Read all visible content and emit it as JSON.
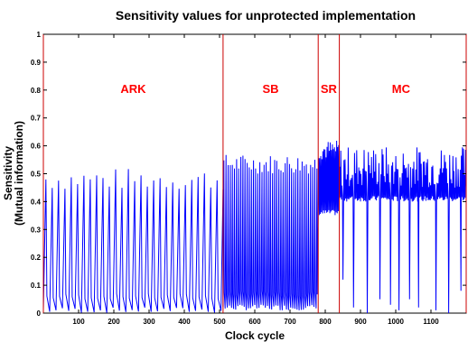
{
  "chart_data": {
    "type": "line",
    "title": "Sensitivity values for unprotected implementation",
    "xlabel": "Clock cycle",
    "ylabel_line1": "Sensitivity",
    "ylabel_line2": "(Mutual information)",
    "xlim": [
      0,
      1200
    ],
    "ylim": [
      0,
      1
    ],
    "xticks": [
      100,
      200,
      300,
      400,
      500,
      600,
      700,
      800,
      900,
      1000,
      1100
    ],
    "yticks": [
      0,
      0.1,
      0.2,
      0.3,
      0.4,
      0.5,
      0.6,
      0.7,
      0.8,
      0.9,
      1
    ],
    "grid": false,
    "line_color": "#0000ff",
    "boundary_color": "#cc0000",
    "boundaries": [
      0,
      510,
      780,
      840,
      1200
    ],
    "regions": [
      {
        "label": "ARK",
        "x_center": 255
      },
      {
        "label": "SB",
        "x_center": 645
      },
      {
        "label": "SR",
        "x_center": 810
      },
      {
        "label": "MC",
        "x_center": 1015
      }
    ],
    "segments": [
      {
        "x_start": 0,
        "x_end": 510,
        "period": 18,
        "peak_min": 0.44,
        "peak_max": 0.52,
        "trough": 0.0
      },
      {
        "x_start": 510,
        "x_end": 780,
        "period": 6,
        "peak_min": 0.5,
        "peak_max": 0.57,
        "trough": 0.01
      },
      {
        "x_start": 780,
        "x_end": 840,
        "period": 3,
        "peak_min": 0.55,
        "peak_max": 0.62,
        "trough": 0.35
      },
      {
        "x_start": 840,
        "x_end": 1200,
        "period": 3,
        "peak_min": 0.45,
        "peak_max": 0.6,
        "trough": 0.4
      }
    ],
    "mc_dips": [
      {
        "x": 850,
        "min": 0.12
      },
      {
        "x": 880,
        "min": 0.02
      },
      {
        "x": 920,
        "min": 0.0
      },
      {
        "x": 955,
        "min": 0.05
      },
      {
        "x": 985,
        "min": 0.03
      },
      {
        "x": 1010,
        "min": 0.01
      },
      {
        "x": 1040,
        "min": 0.05
      },
      {
        "x": 1065,
        "min": 0.02
      },
      {
        "x": 1115,
        "min": 0.01
      },
      {
        "x": 1150,
        "min": 0.0
      },
      {
        "x": 1185,
        "min": 0.08
      }
    ]
  }
}
